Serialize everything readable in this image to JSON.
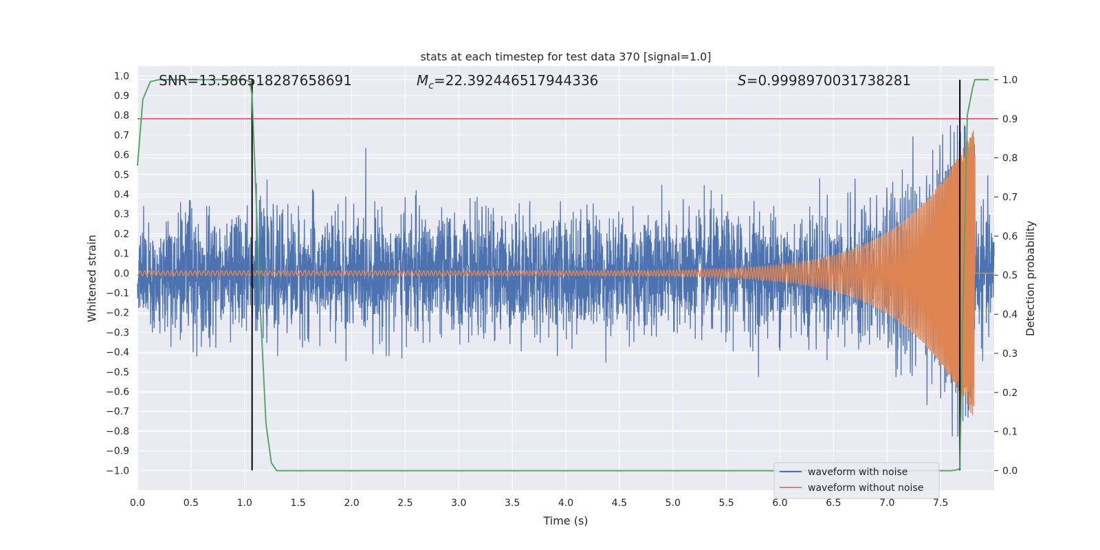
{
  "chart_data": {
    "type": "line",
    "title": "stats at each timestep for test data 370 [signal=1.0]",
    "xlabel": "Time (s)",
    "ylabel": "Whitened strain",
    "y2label": "Detection probability",
    "xlim": [
      0,
      8
    ],
    "ylim": [
      -1.1,
      1.05
    ],
    "y2lim": [
      -0.05,
      1.035
    ],
    "x_ticks": [
      "0.0",
      "0.5",
      "1.0",
      "1.5",
      "2.0",
      "2.5",
      "3.0",
      "3.5",
      "4.0",
      "4.5",
      "5.0",
      "5.5",
      "6.0",
      "6.5",
      "7.0",
      "7.5"
    ],
    "y_ticks": [
      "1.0",
      "0.9",
      "0.8",
      "0.7",
      "0.6",
      "0.5",
      "0.4",
      "0.3",
      "0.2",
      "0.1",
      "0.0",
      "−0.1",
      "−0.2",
      "−0.3",
      "−0.4",
      "−0.5",
      "−0.6",
      "−0.7",
      "−0.8",
      "−0.9",
      "−1.0"
    ],
    "y2_ticks": [
      "1.0",
      "0.9",
      "0.8",
      "0.7",
      "0.6",
      "0.5",
      "0.4",
      "0.3",
      "0.2",
      "0.1",
      "0.0"
    ],
    "grid": true,
    "legend_position": "lower-right",
    "annotations": {
      "snr": "SNR=13.586518287658691",
      "mc_symbol": "M",
      "mc_sub": "c",
      "mc_value": "=22.392446517944336",
      "s_symbol": "S",
      "s_value": "=0.9998970031738281"
    },
    "series": [
      {
        "name": "waveform with noise",
        "axis": "left",
        "color": "#4c72b0",
        "envelope_description_values": {
          "x_range": [
            0,
            8
          ],
          "typical_amplitude": 0.35,
          "peak_max": 0.75,
          "peak_min": -1.0
        }
      },
      {
        "name": "waveform without noise",
        "axis": "left",
        "color": "#dd8452",
        "chirp": {
          "t_start": 0.0,
          "t_end": 7.82,
          "f_start": 6,
          "f_end": 60,
          "amp_start": 0.012,
          "amp_end": 0.75
        }
      },
      {
        "axis": "right",
        "color": "#55a868",
        "x": [
          0.0,
          0.05,
          0.12,
          0.2,
          0.5,
          0.8,
          1.0,
          1.05,
          1.07,
          1.1,
          1.15,
          1.2,
          1.25,
          1.3,
          1.35,
          1.5,
          2.0,
          3.0,
          4.0,
          5.0,
          6.0,
          7.0,
          7.6,
          7.65,
          7.68,
          7.7,
          7.75,
          7.8,
          7.82,
          7.86,
          7.95
        ],
        "y": [
          0.78,
          0.95,
          0.995,
          1.0,
          1.0,
          1.0,
          1.0,
          0.995,
          0.96,
          0.75,
          0.4,
          0.12,
          0.02,
          0.0,
          0.0,
          0.0,
          0.0,
          0.0,
          0.0,
          0.0,
          0.0,
          0.0,
          0.0,
          0.002,
          0.005,
          0.3,
          0.91,
          0.98,
          1.0,
          1.0,
          1.0
        ]
      },
      {
        "axis": "right",
        "color": "#c44e52",
        "threshold": 0.9
      }
    ],
    "vertical_lines": [
      1.07,
      7.68
    ],
    "vertical_line_color": "#000000"
  }
}
